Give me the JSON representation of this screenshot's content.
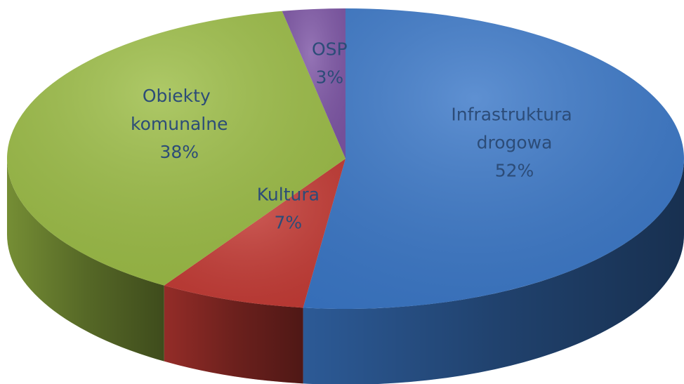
{
  "chart_data": {
    "type": "pie",
    "categories": [
      "Infrastruktura drogowa",
      "Kultura",
      "Obiekty komunalne",
      "OSP"
    ],
    "values": [
      52,
      7,
      38,
      3
    ],
    "value_labels": [
      "52%",
      "7%",
      "38%",
      "3%"
    ],
    "colors": [
      "#3b78c8",
      "#c53b35",
      "#9cbd46",
      "#7e56a6"
    ]
  }
}
